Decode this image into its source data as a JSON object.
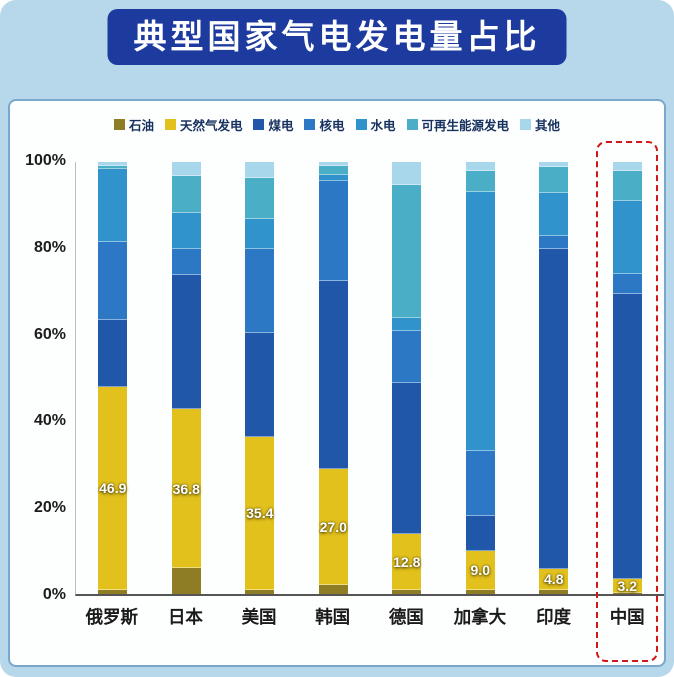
{
  "title": "典型国家气电发电量占比",
  "chart_data": {
    "type": "bar",
    "stacked": true,
    "unit": "%",
    "ylim": [
      0,
      100
    ],
    "grid": false,
    "legend_position": "top",
    "yticks": [
      "0%",
      "20%",
      "40%",
      "60%",
      "80%",
      "100%"
    ],
    "categories": [
      "俄罗斯",
      "日本",
      "美国",
      "韩国",
      "德国",
      "加拿大",
      "印度",
      "中国"
    ],
    "gas_value_labels": [
      "46.9",
      "36.8",
      "35.4",
      "27.0",
      "12.8",
      "9.0",
      "4.8",
      "3.2"
    ],
    "series": [
      {
        "name": "石油",
        "color": "#8f7d26",
        "values": [
          1.0,
          6.0,
          1.0,
          2.0,
          1.0,
          1.0,
          1.0,
          0.3
        ]
      },
      {
        "name": "天然气发电",
        "color": "#e2c11c",
        "values": [
          46.9,
          36.8,
          35.4,
          27.0,
          12.8,
          9.0,
          4.8,
          3.2
        ]
      },
      {
        "name": "煤电",
        "color": "#2057a8",
        "values": [
          15.6,
          31.0,
          24.0,
          43.5,
          35.0,
          8.0,
          74.0,
          66.0
        ]
      },
      {
        "name": "核电",
        "color": "#2d78c4",
        "values": [
          18.0,
          6.0,
          19.5,
          23.0,
          12.0,
          15.0,
          3.0,
          4.5
        ]
      },
      {
        "name": "水电",
        "color": "#3093cb",
        "values": [
          17.0,
          8.5,
          7.0,
          1.5,
          3.0,
          60.0,
          10.0,
          17.0
        ]
      },
      {
        "name": "可再生能源发电",
        "color": "#4aaec6",
        "values": [
          0.5,
          8.5,
          9.5,
          2.0,
          31.0,
          5.0,
          6.0,
          7.0
        ]
      },
      {
        "name": "其他",
        "color": "#a8d6ea",
        "values": [
          1.0,
          3.2,
          3.6,
          1.0,
          5.2,
          2.0,
          1.2,
          2.0
        ]
      }
    ],
    "highlight": {
      "category": "中国",
      "style": "red-dashed-box"
    }
  }
}
